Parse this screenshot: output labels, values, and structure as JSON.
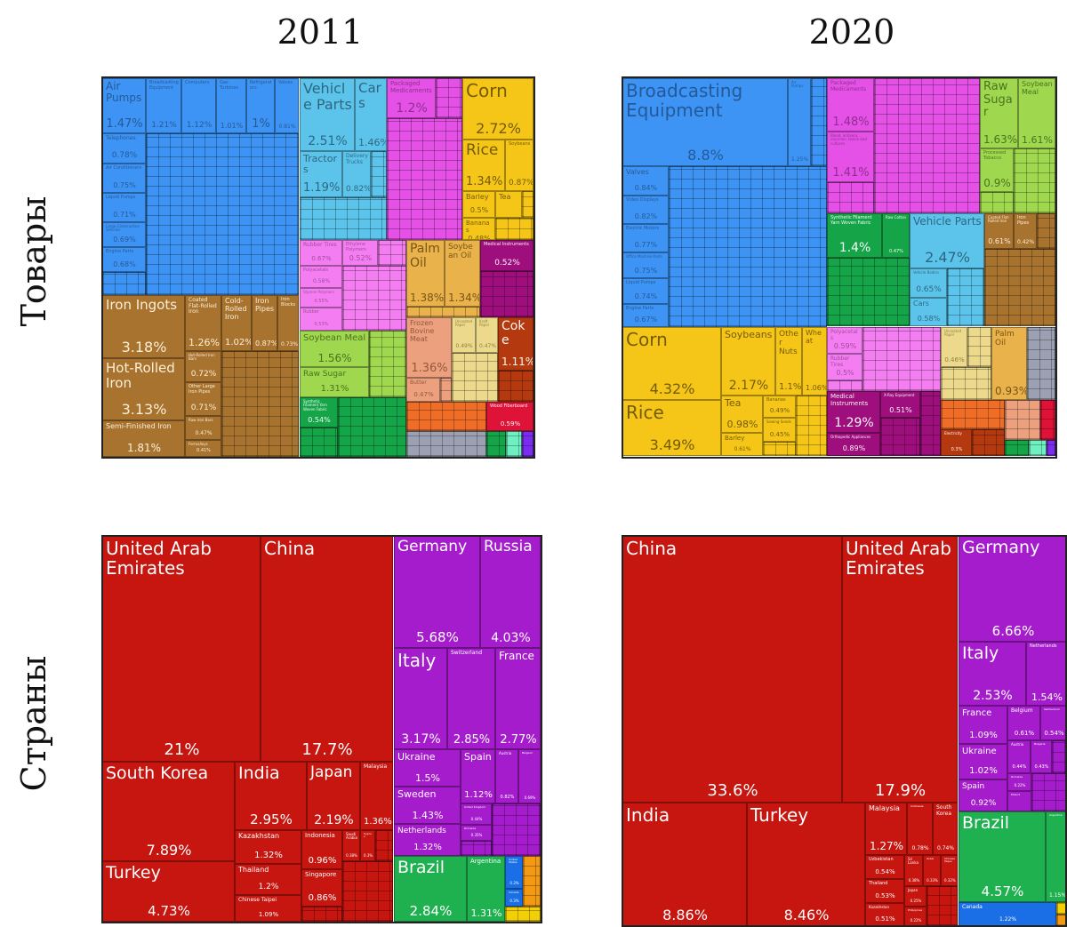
{
  "column_titles": [
    "2011",
    "2020"
  ],
  "row_titles": [
    "Товары",
    "Страны"
  ],
  "categories": {
    "mach": {
      "fill": "#3d94f4",
      "text": "rgba(20,50,90,0.6)"
    },
    "veh": {
      "fill": "#5cc4ea",
      "text": "rgba(20,50,70,0.65)"
    },
    "chem": {
      "fill": "#e550e6",
      "text": "rgba(70,20,70,0.55)"
    },
    "veg": {
      "fill": "#f5c617",
      "text": "rgba(60,45,0,0.7)"
    },
    "metal": {
      "fill": "#a8732e",
      "text": "rgba(255,245,225,0.95)"
    },
    "plast": {
      "fill": "#f47ef1",
      "text": "rgba(90,30,90,0.55)"
    },
    "food": {
      "fill": "#9fd84e",
      "text": "rgba(40,70,10,0.7)"
    },
    "textile": {
      "fill": "#15a548",
      "text": "rgba(255,255,255,0.95)"
    },
    "oil": {
      "fill": "#e9b24b",
      "text": "rgba(70,45,0,0.7)"
    },
    "instr": {
      "fill": "#9e0f7d",
      "text": "rgba(255,255,255,0.95)"
    },
    "anim": {
      "fill": "#eca07e",
      "text": "rgba(90,40,20,0.6)"
    },
    "paper": {
      "fill": "#ecd98b",
      "text": "rgba(80,70,20,0.6)"
    },
    "mineral": {
      "fill": "#b5390f",
      "text": "rgba(255,255,255,0.95)"
    },
    "stone": {
      "fill": "#f06d28",
      "text": "rgba(255,255,255,0.9)"
    },
    "wood": {
      "fill": "#df1338",
      "text": "rgba(255,255,255,0.95)"
    },
    "misc": {
      "fill": "#9ba1b3",
      "text": "rgba(40,40,60,0.6)"
    },
    "teal": {
      "fill": "#6ef0c0",
      "text": "#fff"
    },
    "violet": {
      "fill": "#7c2cf0",
      "text": "#fff"
    },
    "asia": {
      "fill": "#c7150f",
      "text": "#ffffff"
    },
    "europe": {
      "fill": "#a41ccb",
      "text": "#ffffff"
    },
    "samerica": {
      "fill": "#1fb04f",
      "text": "#ffffff"
    },
    "namerica": {
      "fill": "#1a6fe6",
      "text": "#ffffff"
    },
    "africa": {
      "fill": "#f49a12",
      "text": "#ffffff"
    },
    "oceania": {
      "fill": "#f3cf06",
      "text": "#ffffff"
    }
  },
  "chart_data": [
    {
      "type": "treemap",
      "year": "2011",
      "row": "Товары",
      "unit": "%",
      "tiles": [
        {
          "label": "Air Pumps",
          "value": 1.47,
          "category": "mach"
        },
        {
          "label": "Broadcasting Equipment",
          "value": 1.21,
          "category": "mach"
        },
        {
          "label": "Computers",
          "value": 1.12,
          "category": "mach"
        },
        {
          "label": "Gas Turbines",
          "value": 1.01,
          "category": "mach"
        },
        {
          "label": "Refrigerators",
          "value": 1,
          "category": "mach"
        },
        {
          "label": "Valves",
          "value": 0.81,
          "category": "mach"
        },
        {
          "label": "Telephones",
          "value": 0.78,
          "category": "mach"
        },
        {
          "label": "Air Conditioners",
          "value": 0.75,
          "category": "mach"
        },
        {
          "label": "Liquid Pumps",
          "value": 0.71,
          "category": "mach"
        },
        {
          "label": "Large Construction Vehicles",
          "value": 0.69,
          "category": "mach"
        },
        {
          "label": "Engine Parts",
          "value": 0.68,
          "category": "mach"
        },
        {
          "label": "Vehicle Parts",
          "value": 2.51,
          "category": "veh"
        },
        {
          "label": "Cars",
          "value": 1.46,
          "category": "veh"
        },
        {
          "label": "Tractors",
          "value": 1.19,
          "category": "veh"
        },
        {
          "label": "Delivery Trucks",
          "value": 0.82,
          "category": "veh"
        },
        {
          "label": "Packaged Medicaments",
          "value": 1.2,
          "category": "chem"
        },
        {
          "label": "Corn",
          "value": 2.72,
          "category": "veg"
        },
        {
          "label": "Rice",
          "value": 1.34,
          "category": "veg"
        },
        {
          "label": "Soybeans",
          "value": 0.87,
          "category": "veg"
        },
        {
          "label": "Barley",
          "value": 0.5,
          "category": "veg"
        },
        {
          "label": "Tea",
          "value": null,
          "category": "veg"
        },
        {
          "label": "Bananas",
          "value": 0.48,
          "category": "veg"
        },
        {
          "label": "Iron Ingots",
          "value": 3.18,
          "category": "metal"
        },
        {
          "label": "Hot-Rolled Iron",
          "value": 3.13,
          "category": "metal"
        },
        {
          "label": "Semi-Finished Iron",
          "value": 1.81,
          "category": "metal"
        },
        {
          "label": "Coated Flat-Rolled Iron",
          "value": 1.26,
          "category": "metal"
        },
        {
          "label": "Cold-Rolled Iron",
          "value": 1.02,
          "category": "metal"
        },
        {
          "label": "Iron Pipes",
          "value": 0.87,
          "category": "metal"
        },
        {
          "label": "Iron Blocks",
          "value": 0.73,
          "category": "metal"
        },
        {
          "label": "Hot-Rolled Iron Bars",
          "value": 0.72,
          "category": "metal"
        },
        {
          "label": "Other Large Iron Pipes",
          "value": 0.71,
          "category": "metal"
        },
        {
          "label": "Raw Iron Bars",
          "value": 0.47,
          "category": "metal"
        },
        {
          "label": "Ferroalloys",
          "value": 0.41,
          "category": "metal"
        },
        {
          "label": "Rubber Tires",
          "value": 0.67,
          "category": "plast"
        },
        {
          "label": "Ethylene Polymers",
          "value": 0.52,
          "category": "plast"
        },
        {
          "label": "Polyacetals",
          "value": 0.58,
          "category": "plast"
        },
        {
          "label": "Styrene Polymers",
          "value": 0.55,
          "category": "plast"
        },
        {
          "label": "Rubber",
          "value": 0.53,
          "category": "plast"
        },
        {
          "label": "Soybean Meal",
          "value": 1.56,
          "category": "food"
        },
        {
          "label": "Raw Sugar",
          "value": 1.31,
          "category": "food"
        },
        {
          "label": "Synthetic Filament Yarn Woven Fabric",
          "value": 0.54,
          "category": "textile"
        },
        {
          "label": "Palm Oil",
          "value": 1.38,
          "category": "oil"
        },
        {
          "label": "Soybean Oil",
          "value": 1.34,
          "category": "oil"
        },
        {
          "label": "Medical Instruments",
          "value": 0.52,
          "category": "instr"
        },
        {
          "label": "Frozen Bovine Meat",
          "value": 1.36,
          "category": "anim"
        },
        {
          "label": "Butter",
          "value": 0.47,
          "category": "anim"
        },
        {
          "label": "Uncoated Paper",
          "value": 0.49,
          "category": "paper"
        },
        {
          "label": "Kraft Paper",
          "value": 0.47,
          "category": "paper"
        },
        {
          "label": "Coke",
          "value": 1.11,
          "category": "mineral"
        },
        {
          "label": "Wood Fiberboard",
          "value": 0.59,
          "category": "wood"
        }
      ]
    },
    {
      "type": "treemap",
      "year": "2020",
      "row": "Товары",
      "unit": "%",
      "tiles": [
        {
          "label": "Broadcasting Equipment",
          "value": 8.8,
          "category": "mach"
        },
        {
          "label": "Air Pumps",
          "value": 1.25,
          "category": "mach"
        },
        {
          "label": "Valves",
          "value": 0.84,
          "category": "mach"
        },
        {
          "label": "Video Displays",
          "value": 0.82,
          "category": "mach"
        },
        {
          "label": "Electric Motors",
          "value": 0.77,
          "category": "mach"
        },
        {
          "label": "Office Machine Parts",
          "value": 0.75,
          "category": "mach"
        },
        {
          "label": "Liquid Pumps",
          "value": 0.74,
          "category": "mach"
        },
        {
          "label": "Engine Parts",
          "value": 0.67,
          "category": "mach"
        },
        {
          "label": "Packaged Medicaments",
          "value": 1.48,
          "category": "chem"
        },
        {
          "label": "Blood, antisera, vaccines, toxins and cultures",
          "value": 1.41,
          "category": "chem"
        },
        {
          "label": "Raw Sugar",
          "value": 1.63,
          "category": "food"
        },
        {
          "label": "Soybean Meal",
          "value": 1.61,
          "category": "food"
        },
        {
          "label": "Processed Tobacco",
          "value": 0.9,
          "category": "food"
        },
        {
          "label": "Synthetic Filament Yarn Woven Fabric",
          "value": 1.4,
          "category": "textile"
        },
        {
          "label": "Raw Cotton",
          "value": 0.47,
          "category": "textile"
        },
        {
          "label": "Vehicle Parts",
          "value": 2.47,
          "category": "veh"
        },
        {
          "label": "Vehicle Bodies",
          "value": 0.65,
          "category": "veh"
        },
        {
          "label": "Cars",
          "value": 0.58,
          "category": "veh"
        },
        {
          "label": "Coated Flat-Rolled Iron",
          "value": 0.61,
          "category": "metal"
        },
        {
          "label": "Iron Pipes",
          "value": 0.42,
          "category": "metal"
        },
        {
          "label": "Corn",
          "value": 4.32,
          "category": "veg"
        },
        {
          "label": "Rice",
          "value": 3.49,
          "category": "veg"
        },
        {
          "label": "Soybeans",
          "value": 2.17,
          "category": "veg"
        },
        {
          "label": "Other Nuts",
          "value": 1.1,
          "category": "veg"
        },
        {
          "label": "Wheat",
          "value": 1.06,
          "category": "veg"
        },
        {
          "label": "Tea",
          "value": 0.98,
          "category": "veg"
        },
        {
          "label": "Barley",
          "value": 0.61,
          "category": "veg"
        },
        {
          "label": "Bananas",
          "value": 0.49,
          "category": "veg"
        },
        {
          "label": "Sowing Seeds",
          "value": 0.45,
          "category": "veg"
        },
        {
          "label": "Polyacetals",
          "value": 0.59,
          "category": "plast"
        },
        {
          "label": "Rubber Tires",
          "value": 0.5,
          "category": "plast"
        },
        {
          "label": "Medical Instruments",
          "value": 1.29,
          "category": "instr"
        },
        {
          "label": "Orthopedic Appliances",
          "value": 0.89,
          "category": "instr"
        },
        {
          "label": "X-Ray Equipment",
          "value": 0.51,
          "category": "instr"
        },
        {
          "label": "Uncoated Paper",
          "value": 0.46,
          "category": "paper"
        },
        {
          "label": "Palm Oil",
          "value": 0.93,
          "category": "oil"
        },
        {
          "label": "Electricity",
          "value": 0.3,
          "category": "mineral"
        }
      ]
    },
    {
      "type": "treemap",
      "year": "2011",
      "row": "Страны",
      "unit": "%",
      "tiles": [
        {
          "label": "United Arab Emirates",
          "value": 21,
          "category": "asia"
        },
        {
          "label": "China",
          "value": 17.7,
          "category": "asia"
        },
        {
          "label": "South Korea",
          "value": 7.89,
          "category": "asia"
        },
        {
          "label": "Turkey",
          "value": 4.73,
          "category": "asia"
        },
        {
          "label": "India",
          "value": 2.95,
          "category": "asia"
        },
        {
          "label": "Japan",
          "value": 2.19,
          "category": "asia"
        },
        {
          "label": "Malaysia",
          "value": 1.36,
          "category": "asia"
        },
        {
          "label": "Kazakhstan",
          "value": 1.32,
          "category": "asia"
        },
        {
          "label": "Thailand",
          "value": 1.2,
          "category": "asia"
        },
        {
          "label": "Chinese Taipei",
          "value": 1.09,
          "category": "asia"
        },
        {
          "label": "Indonesia",
          "value": 0.96,
          "category": "asia"
        },
        {
          "label": "Singapore",
          "value": 0.86,
          "category": "asia"
        },
        {
          "label": "Saudi Arabia",
          "value": 0.38,
          "category": "asia"
        },
        {
          "label": "Cyprus",
          "value": 0.3,
          "category": "asia"
        },
        {
          "label": "Germany",
          "value": 5.68,
          "category": "europe"
        },
        {
          "label": "Russia",
          "value": 4.03,
          "category": "europe"
        },
        {
          "label": "Italy",
          "value": 3.17,
          "category": "europe"
        },
        {
          "label": "Switzerland",
          "value": 2.85,
          "category": "europe"
        },
        {
          "label": "France",
          "value": 2.77,
          "category": "europe"
        },
        {
          "label": "Ukraine",
          "value": 1.5,
          "category": "europe"
        },
        {
          "label": "Sweden",
          "value": 1.43,
          "category": "europe"
        },
        {
          "label": "Netherlands",
          "value": 1.32,
          "category": "europe"
        },
        {
          "label": "Spain",
          "value": 1.12,
          "category": "europe"
        },
        {
          "label": "Austria",
          "value": 0.82,
          "category": "europe"
        },
        {
          "label": "Belgium",
          "value": 0.69,
          "category": "europe"
        },
        {
          "label": "United Kingdom",
          "value": 0.44,
          "category": "europe"
        },
        {
          "label": "Romania",
          "value": 0.35,
          "category": "europe"
        },
        {
          "label": "Brazil",
          "value": 2.84,
          "category": "samerica"
        },
        {
          "label": "Argentina",
          "value": 1.31,
          "category": "samerica"
        },
        {
          "label": "United States",
          "value": 0.3,
          "category": "namerica"
        },
        {
          "label": "Canada",
          "value": 0.3,
          "category": "namerica"
        }
      ]
    },
    {
      "type": "treemap",
      "year": "2020",
      "row": "Страны",
      "unit": "%",
      "tiles": [
        {
          "label": "China",
          "value": 33.6,
          "category": "asia"
        },
        {
          "label": "United Arab Emirates",
          "value": 17.9,
          "category": "asia"
        },
        {
          "label": "India",
          "value": 8.86,
          "category": "asia"
        },
        {
          "label": "Turkey",
          "value": 8.46,
          "category": "asia"
        },
        {
          "label": "Malaysia",
          "value": 1.27,
          "category": "asia"
        },
        {
          "label": "Indonesia",
          "value": 0.78,
          "category": "asia"
        },
        {
          "label": "South Korea",
          "value": 0.74,
          "category": "asia"
        },
        {
          "label": "Uzbekistan",
          "value": 0.54,
          "category": "asia"
        },
        {
          "label": "Thailand",
          "value": 0.53,
          "category": "asia"
        },
        {
          "label": "Kazakhstan",
          "value": 0.51,
          "category": "asia"
        },
        {
          "label": "Sri Lanka",
          "value": 0.38,
          "category": "asia"
        },
        {
          "label": "Israel",
          "value": 0.33,
          "category": "asia"
        },
        {
          "label": "Chinese Taipei",
          "value": 0.32,
          "category": "asia"
        },
        {
          "label": "Japan",
          "value": 0.25,
          "category": "asia"
        },
        {
          "label": "Philippines",
          "value": 0.22,
          "category": "asia"
        },
        {
          "label": "Germany",
          "value": 6.66,
          "category": "europe"
        },
        {
          "label": "Italy",
          "value": 2.53,
          "category": "europe"
        },
        {
          "label": "Netherlands",
          "value": 1.54,
          "category": "europe"
        },
        {
          "label": "France",
          "value": 1.09,
          "category": "europe"
        },
        {
          "label": "Ukraine",
          "value": 1.02,
          "category": "europe"
        },
        {
          "label": "Spain",
          "value": 0.92,
          "category": "europe"
        },
        {
          "label": "Belgium",
          "value": 0.61,
          "category": "europe"
        },
        {
          "label": "Switzerland",
          "value": 0.54,
          "category": "europe"
        },
        {
          "label": "Austria",
          "value": 0.44,
          "category": "europe"
        },
        {
          "label": "Bulgaria",
          "value": 0.43,
          "category": "europe"
        },
        {
          "label": "Romania",
          "value": 0.22,
          "category": "europe"
        },
        {
          "label": "Poland",
          "value": null,
          "category": "europe"
        },
        {
          "label": "Brazil",
          "value": 4.57,
          "category": "samerica"
        },
        {
          "label": "Argentina",
          "value": 1.15,
          "category": "samerica"
        },
        {
          "label": "Canada",
          "value": 1.22,
          "category": "namerica"
        }
      ]
    }
  ]
}
